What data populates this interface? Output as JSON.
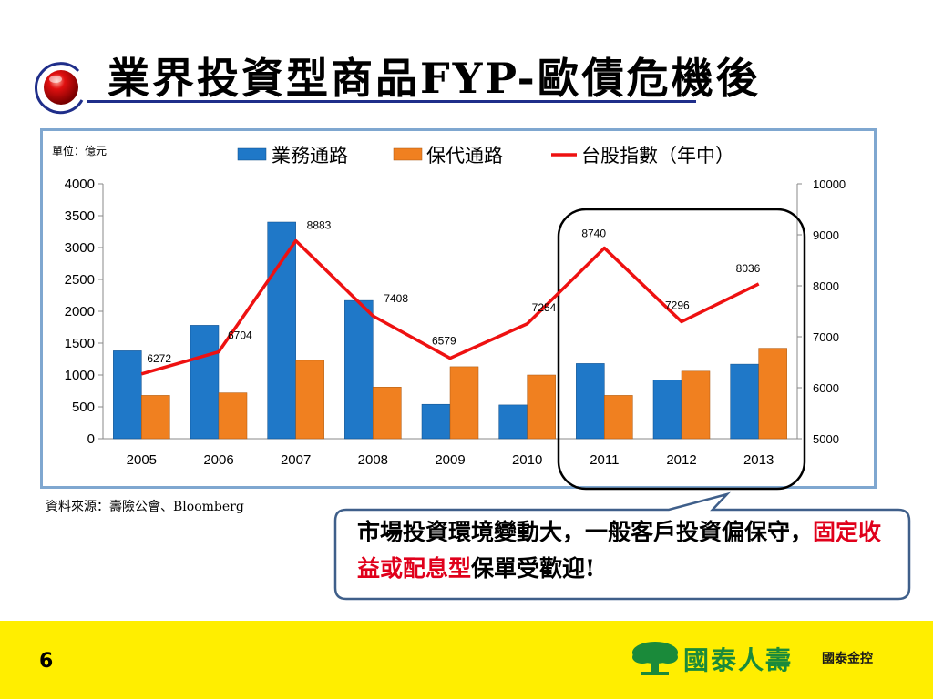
{
  "slide": {
    "title": "業界投資型商品FYP-歐債危機後",
    "unit": "單位：億元",
    "source": "資料來源：壽險公會、Bloomberg",
    "callout": {
      "part1": "市場投資環境變動大，一般客戶投資偏保守，",
      "highlight": "固定收益或配息型",
      "part2": "保單受歡迎!"
    },
    "page_number": "6",
    "brand": "國泰人壽",
    "brand_group": "國泰金控"
  },
  "colors": {
    "bar1": "#1f78c8",
    "bar2": "#f08020",
    "line": "#ee1111",
    "highlight_text": "#e0001b",
    "footer": "#ffee00",
    "title_rule": "#1f2e8a"
  },
  "chart_data": {
    "type": "bar",
    "categories": [
      "2005",
      "2006",
      "2007",
      "2008",
      "2009",
      "2010",
      "2011",
      "2012",
      "2013"
    ],
    "series": [
      {
        "name": "業務通路",
        "type": "bar",
        "axis": "left",
        "values": [
          1380,
          1780,
          3400,
          2170,
          540,
          530,
          1180,
          920,
          1170
        ]
      },
      {
        "name": "保代通路",
        "type": "bar",
        "axis": "left",
        "values": [
          680,
          720,
          1230,
          810,
          1130,
          1000,
          680,
          1060,
          1420
        ]
      },
      {
        "name": "台股指數（年中）",
        "type": "line",
        "axis": "right",
        "values": [
          6272,
          6704,
          8883,
          7408,
          6579,
          7254,
          8740,
          7296,
          8036
        ],
        "labels": [
          "6272",
          "6704",
          "8883",
          "7408",
          "6579",
          "7254",
          "8740",
          "7296",
          "8036"
        ]
      }
    ],
    "y_left": {
      "min": 0,
      "max": 4000,
      "step": 500,
      "ticks": [
        "0",
        "500",
        "1000",
        "1500",
        "2000",
        "2500",
        "3000",
        "3500",
        "4000"
      ]
    },
    "y_right": {
      "min": 5000,
      "max": 10000,
      "step": 1000,
      "ticks": [
        "5000",
        "6000",
        "7000",
        "8000",
        "9000",
        "10000"
      ]
    },
    "legend_position": "top",
    "grid": false,
    "highlight_range": [
      "2011",
      "2013"
    ]
  }
}
